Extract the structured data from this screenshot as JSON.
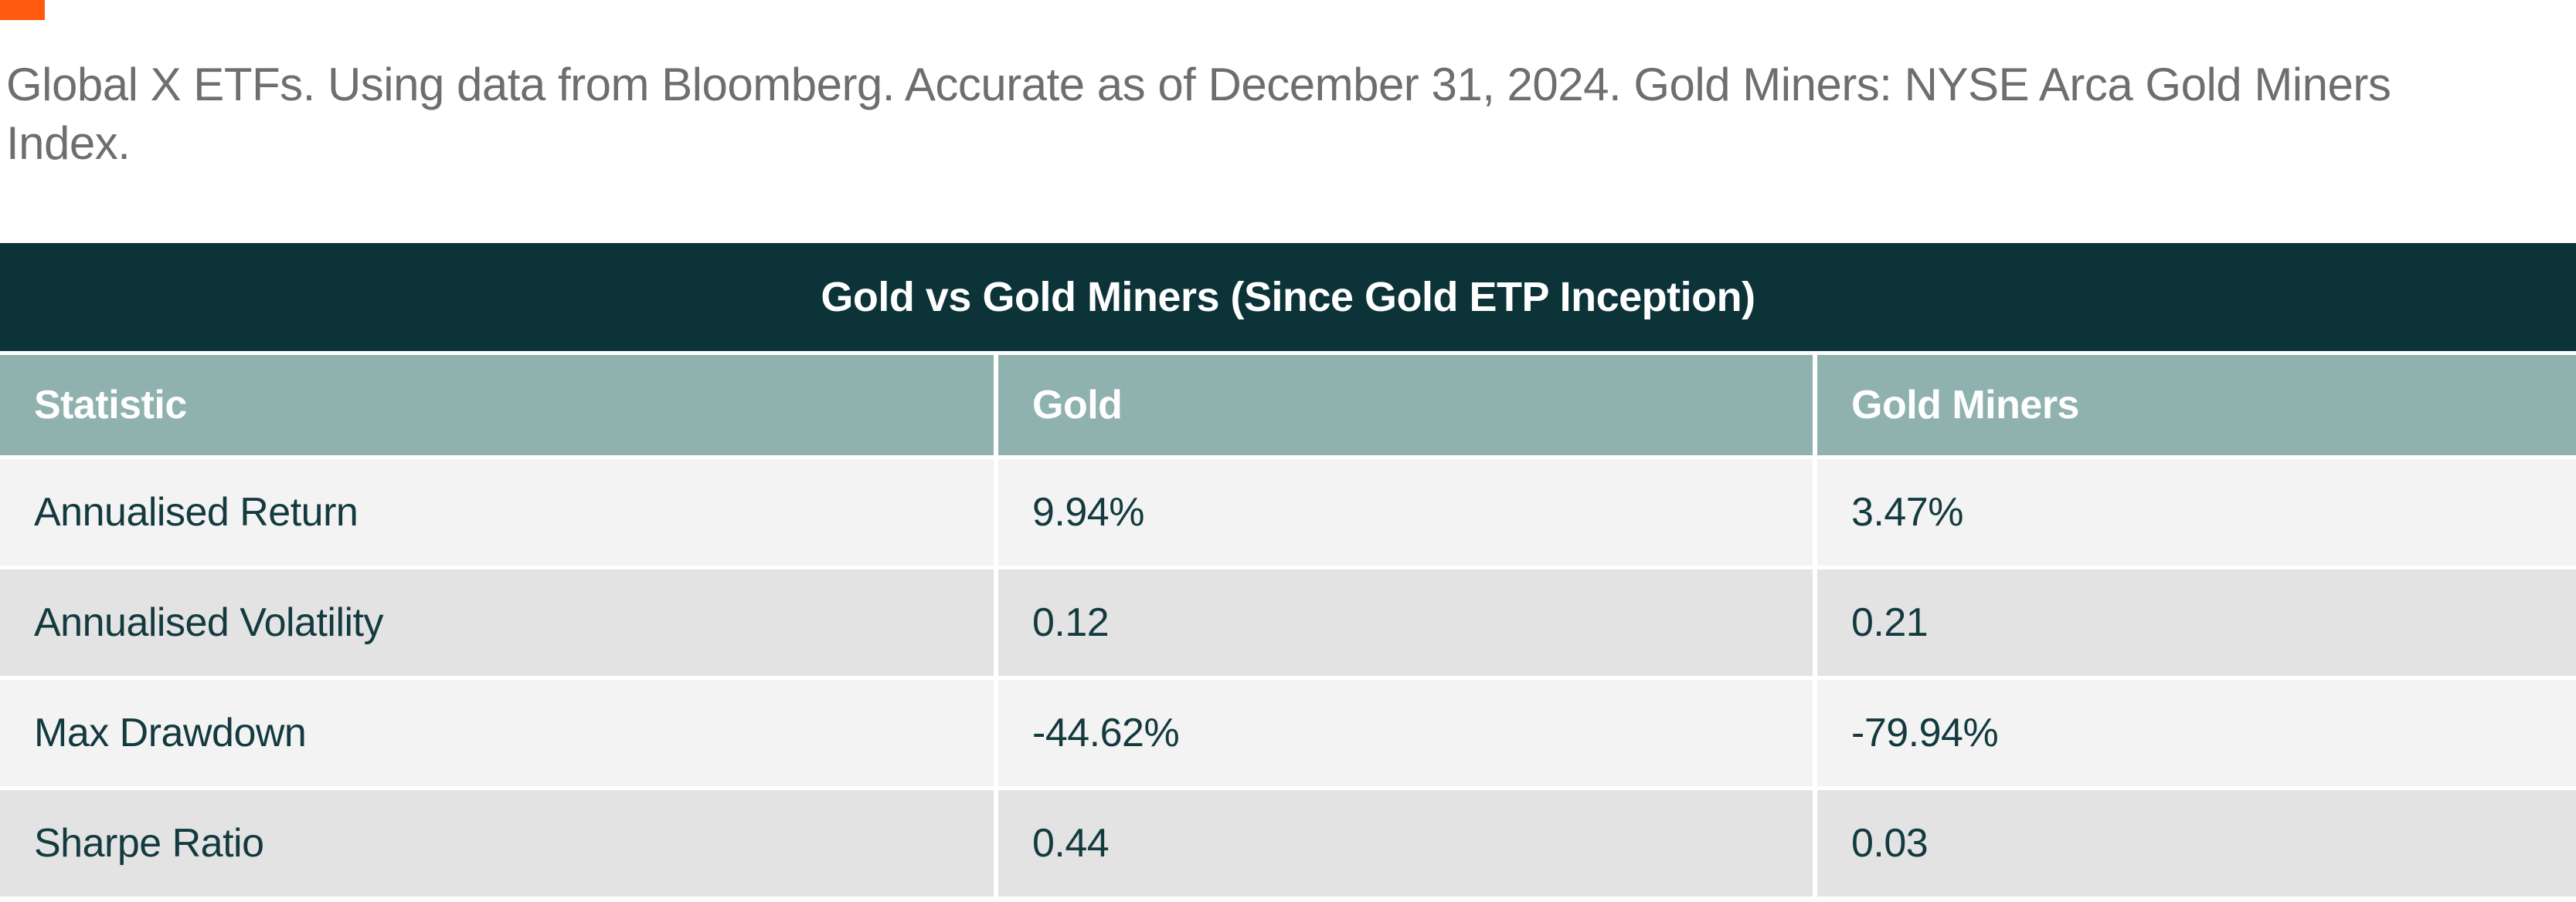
{
  "page": {
    "brand_mark_color": "#FF5A0F",
    "source_note": "Global X ETFs. Using data from Bloomberg. Accurate as of December 31, 2024. Gold Miners: NYSE Arca Gold Miners Index."
  },
  "chart_data": {
    "type": "table",
    "title": "Gold vs Gold Miners (Since Gold ETP Inception)",
    "columns": [
      "Statistic",
      "Gold",
      "Gold Miners"
    ],
    "rows": [
      [
        "Annualised Return",
        "9.94%",
        "3.47%"
      ],
      [
        "Annualised Volatility",
        "0.12",
        "0.21"
      ],
      [
        "Max Drawdown",
        "-44.62%",
        "-79.94%"
      ],
      [
        "Sharpe Ratio",
        "0.44",
        "0.03"
      ]
    ],
    "layout": {
      "title_position": "center",
      "grid": "white gaps between rows and columns",
      "alternating_row_colors": true
    },
    "colors": {
      "title_banner_bg": "#0B3338",
      "title_text": "#FFFFFF",
      "header_bg": "#8FB2AF",
      "header_text": "#FFFFFF",
      "row_light_bg": "#F3F3F3",
      "row_dark_bg": "#E3E3E3",
      "cell_text": "#133A3F",
      "note_text": "#6E6E6E"
    }
  }
}
